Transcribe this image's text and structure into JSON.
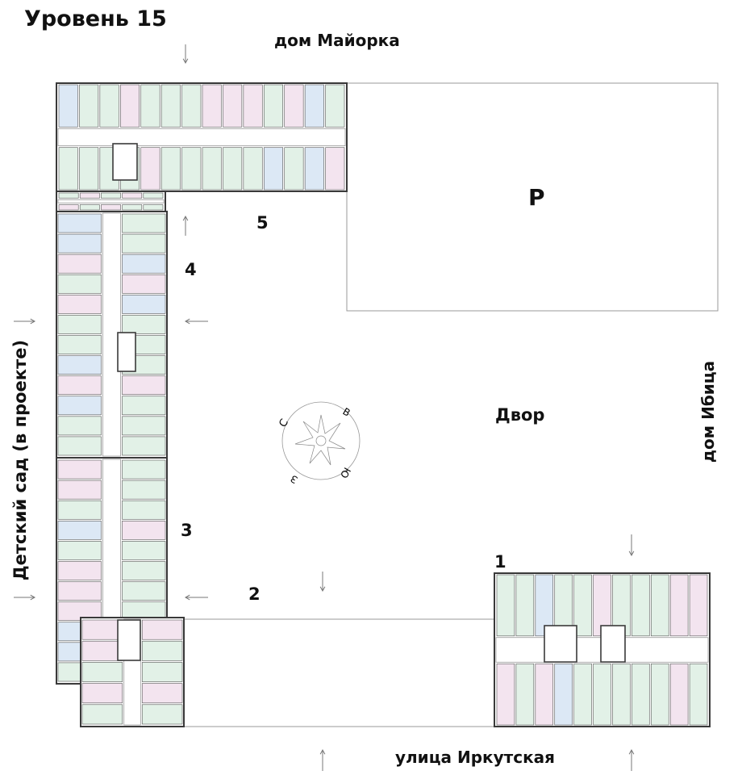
{
  "title": "Уровень 15",
  "neighbors": {
    "north": "дом Майорка",
    "east": "дом Ибица",
    "south": "улица Иркутская",
    "west": "Детский сад (в проекте)"
  },
  "courtyard": "Двор",
  "parking": "P",
  "sections": [
    "1",
    "2",
    "3",
    "4",
    "5"
  ],
  "compass": {
    "n": "С",
    "e": "В",
    "s": "Ю",
    "w": "З"
  },
  "colors": {
    "studio_1room": "#dce8f5",
    "two_room": "#e2f1e7",
    "three_room": "#f3e4ef",
    "wall": "#3a3a3a",
    "outline": "#888888"
  }
}
